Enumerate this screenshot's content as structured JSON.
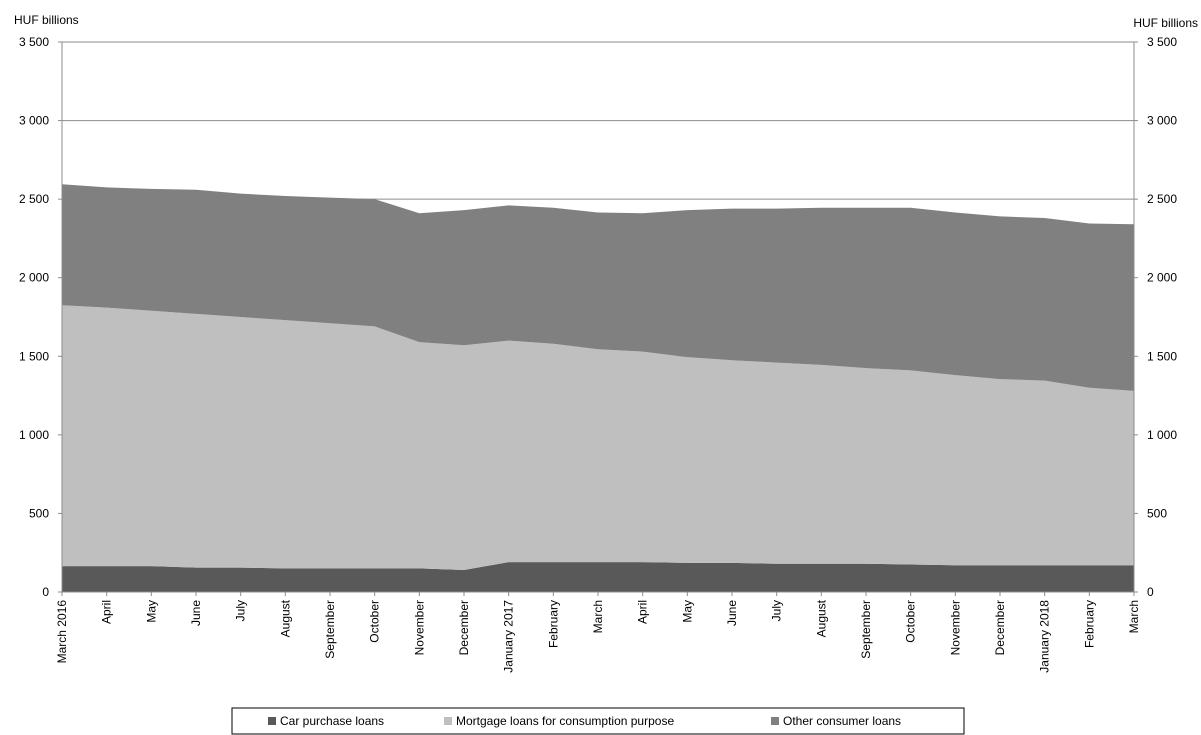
{
  "chart_data": {
    "type": "area",
    "stacked": true,
    "y_unit_left": "HUF billions",
    "y_unit_right": "HUF billions",
    "ylim": [
      0,
      3500
    ],
    "yticks": [
      0,
      500,
      1000,
      1500,
      2000,
      2500,
      3000,
      3500
    ],
    "ytick_labels": [
      "0",
      "500",
      "1 000",
      "1 500",
      "2 000",
      "2 500",
      "3 000",
      "3 500"
    ],
    "categories": [
      "March 2016",
      "April",
      "May",
      "June",
      "July",
      "August",
      "September",
      "October",
      "November",
      "December",
      "January 2017",
      "February",
      "March",
      "April",
      "May",
      "June",
      "July",
      "August",
      "September",
      "October",
      "November",
      "December",
      "January 2018",
      "February",
      "March"
    ],
    "series": [
      {
        "name": "Car purchase loans",
        "color": "#595959",
        "values": [
          165,
          165,
          165,
          155,
          155,
          150,
          150,
          150,
          150,
          140,
          190,
          190,
          190,
          190,
          185,
          185,
          180,
          180,
          180,
          175,
          170,
          170,
          170,
          170,
          170
        ]
      },
      {
        "name": "Mortgage loans for consumption purpose",
        "color": "#bfbfbf",
        "values": [
          1660,
          1645,
          1625,
          1615,
          1595,
          1580,
          1560,
          1540,
          1440,
          1430,
          1410,
          1390,
          1355,
          1340,
          1310,
          1290,
          1280,
          1265,
          1245,
          1235,
          1210,
          1185,
          1175,
          1130,
          1110
        ]
      },
      {
        "name": "Other consumer loans",
        "color": "#808080",
        "values": [
          770,
          765,
          775,
          790,
          785,
          790,
          800,
          810,
          820,
          860,
          860,
          865,
          870,
          880,
          935,
          965,
          980,
          1000,
          1020,
          1035,
          1035,
          1035,
          1035,
          1045,
          1060
        ]
      }
    ],
    "gridlines": true,
    "legend_position": "bottom"
  }
}
